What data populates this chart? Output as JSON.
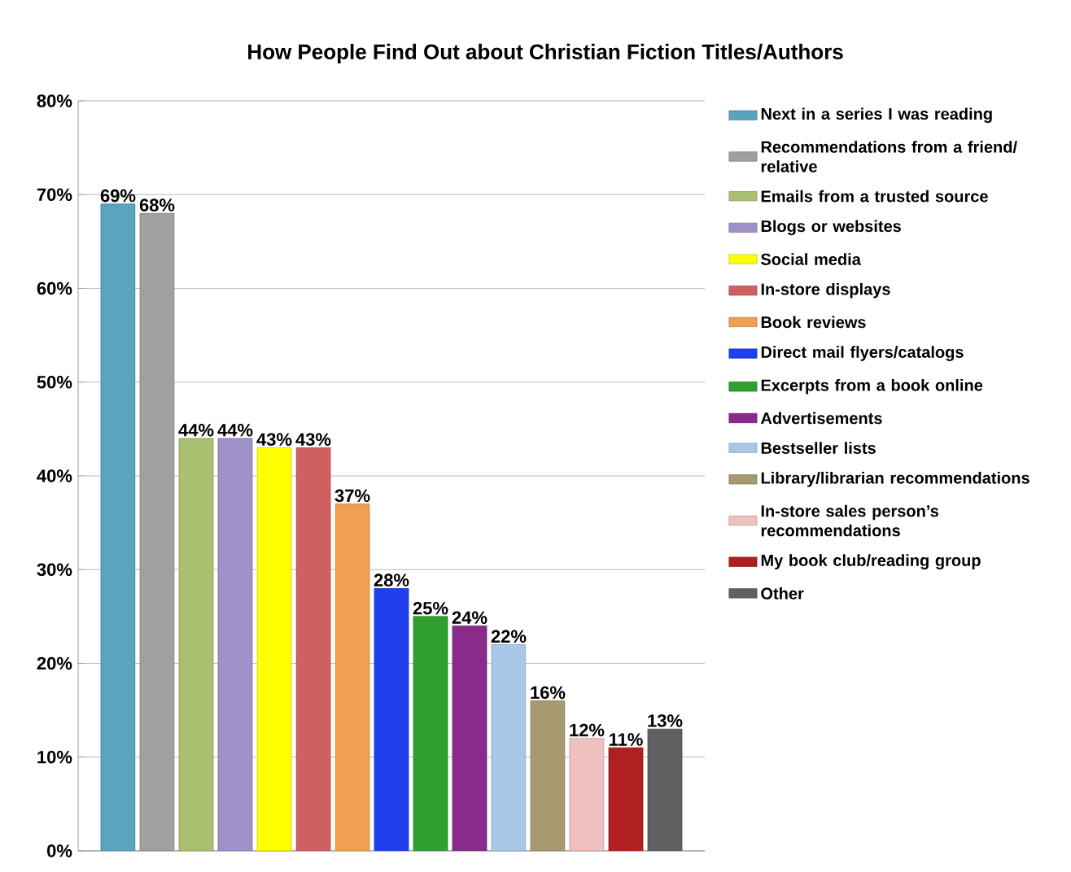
{
  "chart_data": {
    "type": "bar",
    "title": "How People Find Out about Christian Fiction Titles/Authors",
    "categories": [
      null
    ],
    "series": [
      {
        "name": "Next in a series I was reading",
        "color": "#5aa4bd",
        "values": [
          69
        ],
        "value_labels": [
          "69%"
        ]
      },
      {
        "name": "Recommendations from a friend/ relative",
        "color": "#a0a0a0",
        "values": [
          68
        ],
        "value_labels": [
          "68%"
        ]
      },
      {
        "name": "Emails from a trusted source",
        "color": "#a8c070",
        "values": [
          44
        ],
        "value_labels": [
          "44%"
        ]
      },
      {
        "name": "Blogs or websites",
        "color": "#a090c8",
        "values": [
          44
        ],
        "value_labels": [
          "44%"
        ]
      },
      {
        "name": "Social media",
        "color": "#ffff00",
        "values": [
          43
        ],
        "value_labels": [
          "43%"
        ]
      },
      {
        "name": "In-store displays",
        "color": "#d06060",
        "values": [
          43
        ],
        "value_labels": [
          "43%"
        ]
      },
      {
        "name": "Book reviews",
        "color": "#f0a050",
        "values": [
          37
        ],
        "value_labels": [
          "37%"
        ]
      },
      {
        "name": "Direct mail flyers/catalogs",
        "color": "#2040f0",
        "values": [
          28
        ],
        "value_labels": [
          "28%"
        ]
      },
      {
        "name": "Excerpts from a book online",
        "color": "#30a030",
        "values": [
          25
        ],
        "value_labels": [
          "25%"
        ]
      },
      {
        "name": "Advertisements",
        "color": "#8a2a8a",
        "values": [
          24
        ],
        "value_labels": [
          "24%"
        ]
      },
      {
        "name": "Bestseller lists",
        "color": "#a8c8e8",
        "values": [
          22
        ],
        "value_labels": [
          "22%"
        ]
      },
      {
        "name": "Library/librarian recommendations",
        "color": "#a89a70",
        "values": [
          16
        ],
        "value_labels": [
          "16%"
        ]
      },
      {
        "name": "In-store sales person’s recommendations",
        "color": "#f0c0c0",
        "values": [
          12
        ],
        "value_labels": [
          "12%"
        ]
      },
      {
        "name": "My book club/reading group",
        "color": "#b02020",
        "values": [
          11
        ],
        "value_labels": [
          "11%"
        ]
      },
      {
        "name": "Other",
        "color": "#606060",
        "values": [
          13
        ],
        "value_labels": [
          "13%"
        ]
      }
    ],
    "ylim": [
      0,
      80
    ],
    "yticks": [
      {
        "value": 0,
        "label": "0%"
      },
      {
        "value": 10,
        "label": "10%"
      },
      {
        "value": 20,
        "label": "20%"
      },
      {
        "value": 30,
        "label": "30%"
      },
      {
        "value": 40,
        "label": "40%"
      },
      {
        "value": 50,
        "label": "50%"
      },
      {
        "value": 60,
        "label": "60%"
      },
      {
        "value": 70,
        "label": "70%"
      },
      {
        "value": 80,
        "label": "80%"
      }
    ],
    "grid": "y",
    "legend": "right"
  }
}
